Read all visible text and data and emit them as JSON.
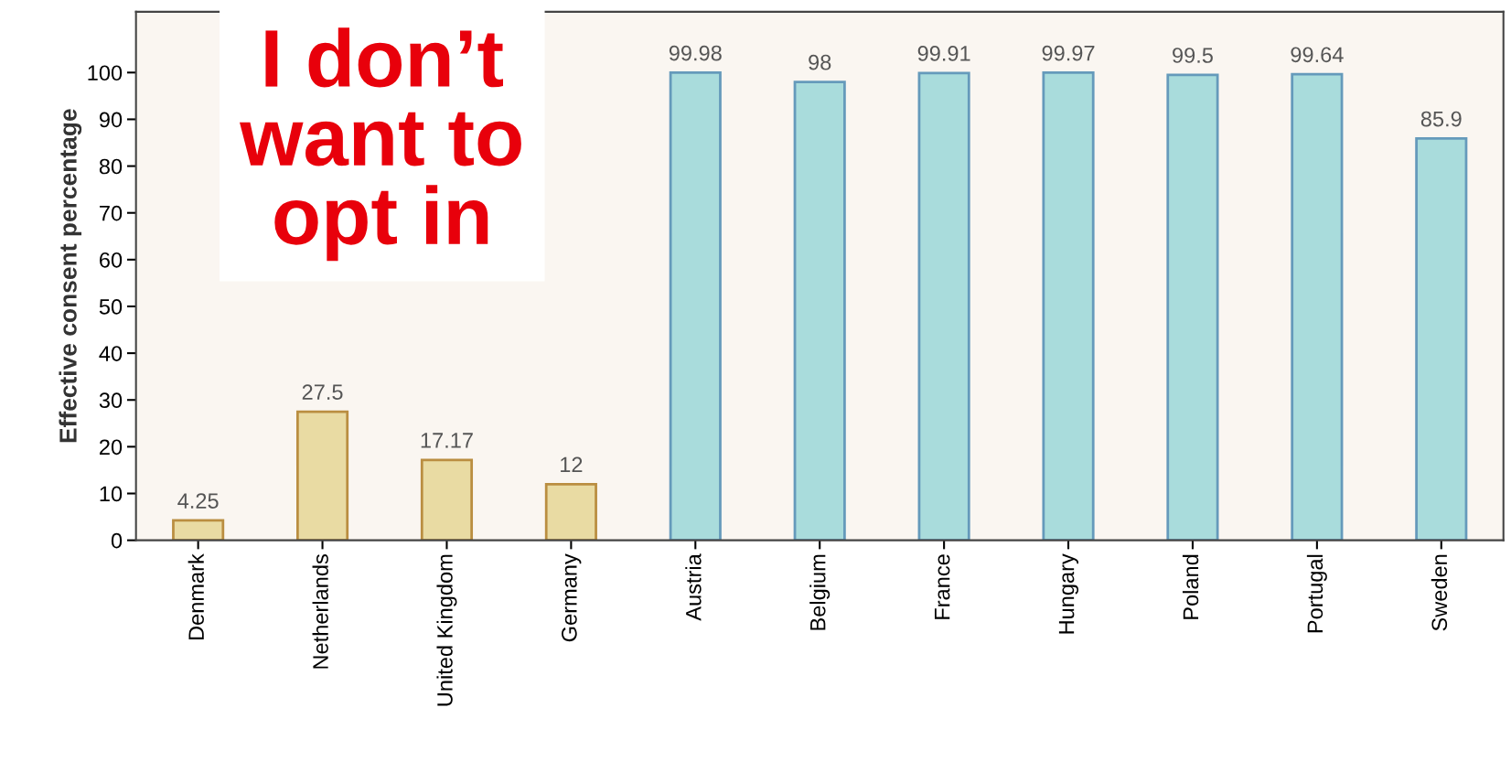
{
  "chart_data": {
    "type": "bar",
    "ylabel": "Effective consent percentage",
    "categories": [
      "Denmark",
      "Netherlands",
      "United Kingdom",
      "Germany",
      "Austria",
      "Belgium",
      "France",
      "Hungary",
      "Poland",
      "Portugal",
      "Sweden"
    ],
    "values": [
      4.25,
      27.5,
      17.17,
      12,
      99.98,
      98,
      99.91,
      99.97,
      99.5,
      99.64,
      85.9
    ],
    "colors": [
      "#e9dba3",
      "#e9dba3",
      "#e9dba3",
      "#e9dba3",
      "#a9dcdc",
      "#a9dcdc",
      "#a9dcdc",
      "#a9dcdc",
      "#a9dcdc",
      "#a9dcdc",
      "#a9dcdc"
    ],
    "data_labels": true,
    "ylim": [
      0,
      113
    ],
    "yticks": [
      0,
      10,
      20,
      30,
      40,
      50,
      60,
      70,
      80,
      90,
      100
    ],
    "annotations": [
      "I don’t\nwant to\nopt in"
    ],
    "grid": false
  }
}
